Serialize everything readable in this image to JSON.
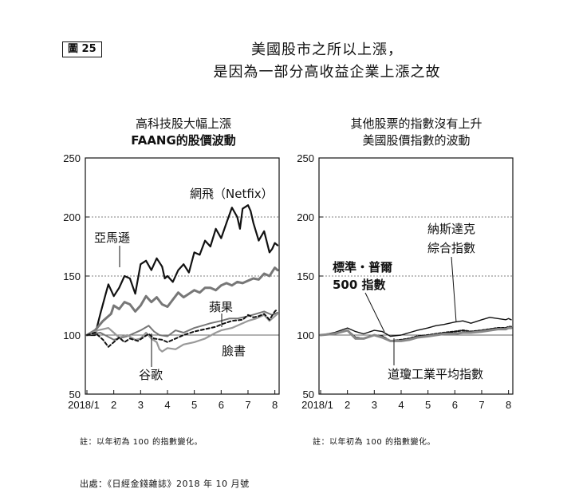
{
  "figure_label": "圖 25",
  "title_line1": "美國股市之所以上漲，",
  "title_line2": "是因為一部分高收益企業上漲之故",
  "left_title_line1": "高科技股大幅上漲",
  "left_title_line2": "FAANG的股價波動",
  "right_title_line1": "其他股票的指數沒有上升",
  "right_title_line2": "美國股價指數的波動",
  "note_left": "註：以年初為 100 的指數變化。",
  "note_right": "註：以年初為 100 的指數變化。",
  "source": "出處：《日經金錢雜誌》2018 年 10 月號",
  "chart_data": [
    {
      "type": "line",
      "title": "高科技股大幅上漲 FAANG的股價波動",
      "xlabel": "",
      "ylabel": "",
      "x_ticks": [
        "2018/1",
        "2",
        "3",
        "4",
        "5",
        "6",
        "7",
        "8"
      ],
      "y_ticks": [
        50,
        100,
        150,
        200,
        250
      ],
      "ylim": [
        50,
        250
      ],
      "xlim": [
        1,
        8.1
      ],
      "grid": "dashed at 150 and 200; solid at 100",
      "series": [
        {
          "name": "網飛（Netfix）",
          "color": "#111111",
          "width": 2.2,
          "dash": "",
          "x": [
            1,
            1.3,
            1.5,
            1.7,
            1.8,
            2.0,
            2.2,
            2.4,
            2.6,
            2.8,
            3.0,
            3.2,
            3.4,
            3.6,
            3.8,
            3.9,
            4.0,
            4.2,
            4.4,
            4.6,
            4.8,
            5.0,
            5.2,
            5.4,
            5.6,
            5.8,
            6.0,
            6.2,
            6.4,
            6.6,
            6.7,
            6.8,
            7.0,
            7.1,
            7.2,
            7.4,
            7.6,
            7.8,
            7.9,
            8.0,
            8.1
          ],
          "y": [
            100,
            100,
            118,
            135,
            143,
            133,
            140,
            150,
            148,
            135,
            160,
            163,
            155,
            165,
            158,
            148,
            150,
            145,
            155,
            160,
            153,
            170,
            168,
            180,
            175,
            190,
            182,
            195,
            208,
            200,
            190,
            207,
            210,
            205,
            195,
            180,
            188,
            170,
            173,
            178,
            176
          ]
        },
        {
          "name": "亞馬遜",
          "color": "#777777",
          "width": 3,
          "dash": "",
          "x": [
            1,
            1.3,
            1.6,
            1.9,
            2.0,
            2.2,
            2.4,
            2.6,
            2.8,
            3.0,
            3.2,
            3.4,
            3.6,
            3.8,
            4.0,
            4.2,
            4.4,
            4.6,
            4.8,
            5.0,
            5.2,
            5.4,
            5.6,
            5.8,
            6.0,
            6.2,
            6.4,
            6.6,
            6.8,
            7.0,
            7.2,
            7.4,
            7.6,
            7.8,
            8.0,
            8.1
          ],
          "y": [
            100,
            104,
            112,
            118,
            125,
            122,
            128,
            126,
            120,
            125,
            133,
            128,
            132,
            126,
            124,
            130,
            136,
            132,
            135,
            138,
            136,
            140,
            140,
            138,
            142,
            144,
            142,
            145,
            144,
            146,
            148,
            147,
            152,
            150,
            157,
            155
          ]
        },
        {
          "name": "蘋果",
          "color": "#777777",
          "width": 2,
          "dash": "",
          "x": [
            1,
            1.5,
            2.0,
            2.5,
            3.0,
            3.3,
            3.5,
            3.7,
            4.0,
            4.3,
            4.6,
            5.0,
            5.3,
            5.6,
            6.0,
            6.3,
            6.6,
            7.0,
            7.3,
            7.6,
            7.9,
            8.0,
            8.1
          ],
          "y": [
            100,
            102,
            96,
            99,
            104,
            108,
            103,
            100,
            99,
            104,
            102,
            106,
            108,
            110,
            112,
            114,
            114,
            116,
            118,
            120,
            117,
            118,
            119
          ]
        },
        {
          "name": "谷歌",
          "color": "#999999",
          "width": 2.2,
          "dash": "",
          "x": [
            1,
            1.4,
            1.8,
            2.0,
            2.2,
            2.5,
            2.8,
            3.0,
            3.2,
            3.4,
            3.6,
            3.7,
            3.8,
            4.0,
            4.3,
            4.6,
            5.0,
            5.4,
            5.8,
            6.0,
            6.4,
            6.8,
            7.0,
            7.3,
            7.6,
            7.8,
            8.0,
            8.1
          ],
          "y": [
            100,
            104,
            106,
            102,
            98,
            100,
            96,
            97,
            102,
            97,
            94,
            88,
            86,
            89,
            88,
            92,
            94,
            97,
            102,
            104,
            106,
            110,
            112,
            114,
            117,
            112,
            116,
            118
          ]
        },
        {
          "name": "臉書",
          "color": "#111111",
          "width": 2,
          "dash": "4,3",
          "x": [
            1,
            1.3,
            1.6,
            1.8,
            2.0,
            2.2,
            2.4,
            2.6,
            2.9,
            3.1,
            3.3,
            3.5,
            3.8,
            4.0,
            4.3,
            4.6,
            5.0,
            5.4,
            5.8,
            6.0,
            6.4,
            6.8,
            7.0,
            7.2,
            7.4,
            7.6,
            7.8,
            8.0,
            8.1
          ],
          "y": [
            100,
            102,
            96,
            90,
            94,
            98,
            94,
            97,
            95,
            98,
            101,
            97,
            96,
            94,
            97,
            100,
            103,
            105,
            107,
            109,
            112,
            113,
            117,
            115,
            116,
            118,
            113,
            120,
            122
          ]
        }
      ]
    },
    {
      "type": "line",
      "title": "其他股票的指數沒有上升 美國股價指數的波動",
      "xlabel": "",
      "ylabel": "",
      "x_ticks": [
        "2018/1",
        "2",
        "3",
        "4",
        "5",
        "6",
        "7",
        "8"
      ],
      "y_ticks": [
        50,
        100,
        150,
        200,
        250
      ],
      "ylim": [
        50,
        250
      ],
      "xlim": [
        1,
        8.1
      ],
      "grid": "dashed at 150 and 200; solid at 100",
      "series": [
        {
          "name": "納斯達克綜合指數",
          "color": "#111111",
          "width": 1.4,
          "dash": "",
          "x": [
            1,
            1.5,
            2.0,
            2.3,
            2.6,
            3.0,
            3.3,
            3.6,
            4.0,
            4.3,
            4.6,
            5.0,
            5.3,
            5.6,
            6.0,
            6.3,
            6.6,
            7.0,
            7.3,
            7.6,
            7.9,
            8.0,
            8.1
          ],
          "y": [
            100,
            102,
            106,
            103,
            101,
            104,
            103,
            99,
            100,
            102,
            104,
            106,
            108,
            109,
            111,
            112,
            110,
            113,
            115,
            114,
            113,
            114,
            113
          ]
        },
        {
          "name": "標準・普爾500指數",
          "color": "#111111",
          "width": 2.2,
          "dash": "3,2",
          "x": [
            1,
            1.5,
            2.0,
            2.3,
            2.6,
            3.0,
            3.3,
            3.6,
            4.0,
            4.3,
            4.6,
            5.0,
            5.3,
            5.6,
            6.0,
            6.3,
            6.6,
            7.0,
            7.3,
            7.6,
            7.9,
            8.0,
            8.1
          ],
          "y": [
            100,
            101,
            104,
            98,
            97,
            100,
            99,
            95,
            96,
            97,
            99,
            100,
            101,
            102,
            103,
            104,
            103,
            104,
            105,
            106,
            106,
            107,
            107
          ]
        },
        {
          "name": "道瓊工業平均指數",
          "color": "#888888",
          "width": 3,
          "dash": "",
          "x": [
            1,
            1.5,
            2.0,
            2.3,
            2.6,
            3.0,
            3.3,
            3.6,
            4.0,
            4.3,
            4.6,
            5.0,
            5.3,
            5.6,
            6.0,
            6.3,
            6.6,
            7.0,
            7.3,
            7.6,
            7.9,
            8.0,
            8.1
          ],
          "y": [
            100,
            101,
            104,
            97,
            97,
            100,
            98,
            95,
            95,
            96,
            98,
            99,
            100,
            101,
            101,
            102,
            102,
            103,
            104,
            105,
            105,
            106,
            106
          ]
        }
      ]
    }
  ],
  "annotations_left": [
    {
      "text": "網飛（Netfix）",
      "bold": false
    },
    {
      "text": "亞馬遜",
      "bold": false
    },
    {
      "text": "蘋果",
      "bold": false
    },
    {
      "text": "臉書",
      "bold": false
    },
    {
      "text": "谷歌",
      "bold": false
    }
  ],
  "annotations_right": [
    {
      "text": "納斯達克",
      "bold": false
    },
    {
      "text": "綜合指數",
      "bold": false
    },
    {
      "text": "標準・普爾",
      "bold": true
    },
    {
      "text": "500 指數",
      "bold": true
    },
    {
      "text": "道瓊工業平均指數",
      "bold": false
    }
  ]
}
